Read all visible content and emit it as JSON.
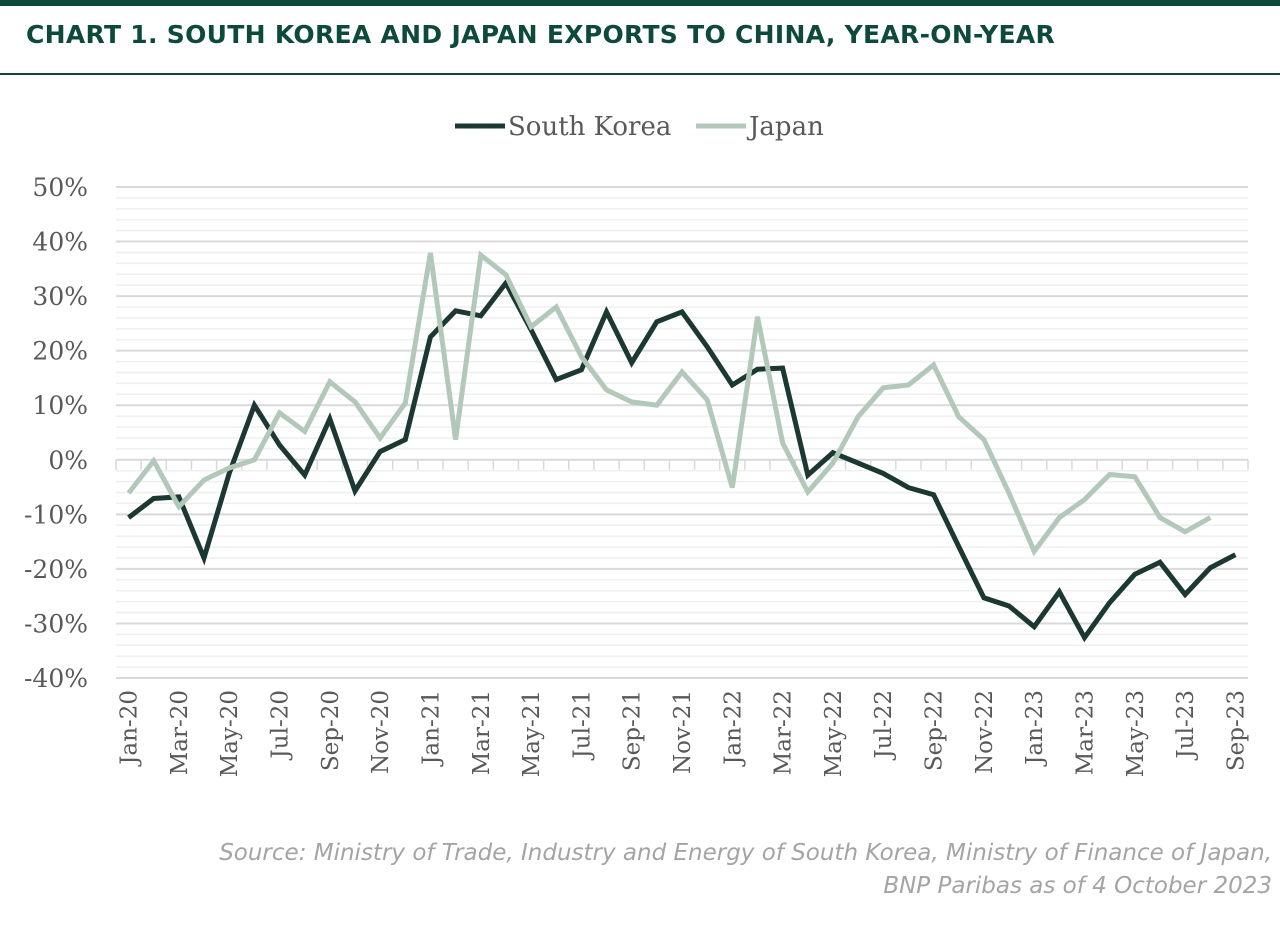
{
  "title": "CHART 1. SOUTH KOREA AND JAPAN EXPORTS TO CHINA, YEAR-ON-YEAR",
  "source_line1": "Source: Ministry of Trade, Industry and Energy of South Korea, Ministry  of Finance of Japan,",
  "source_line2": "BNP Paribas as of 4 October 2023",
  "chart_data": {
    "type": "line",
    "title": "CHART 1. SOUTH KOREA AND JAPAN EXPORTS TO CHINA, YEAR-ON-YEAR",
    "xlabel": "",
    "ylabel": "",
    "ylim": [
      -40,
      50
    ],
    "yticks": [
      50,
      40,
      30,
      20,
      10,
      0,
      -10,
      -20,
      -30,
      -40
    ],
    "ytick_labels": [
      "50%",
      "40%",
      "30%",
      "20%",
      "10%",
      "0%",
      "-10%",
      "-20%",
      "-30%",
      "-40%"
    ],
    "grid": true,
    "legend_position": "top-center",
    "categories": [
      "Jan-20",
      "Feb-20",
      "Mar-20",
      "Apr-20",
      "May-20",
      "Jun-20",
      "Jul-20",
      "Aug-20",
      "Sep-20",
      "Oct-20",
      "Nov-20",
      "Dec-20",
      "Jan-21",
      "Feb-21",
      "Mar-21",
      "Apr-21",
      "May-21",
      "Jun-21",
      "Jul-21",
      "Aug-21",
      "Sep-21",
      "Oct-21",
      "Nov-21",
      "Dec-21",
      "Jan-22",
      "Feb-22",
      "Mar-22",
      "Apr-22",
      "May-22",
      "Jun-22",
      "Jul-22",
      "Aug-22",
      "Sep-22",
      "Oct-22",
      "Nov-22",
      "Dec-22",
      "Jan-23",
      "Feb-23",
      "Mar-23",
      "Apr-23",
      "May-23",
      "Jun-23",
      "Jul-23",
      "Aug-23",
      "Sep-23"
    ],
    "x_tick_labels": [
      "Jan-20",
      "Mar-20",
      "May-20",
      "Jul-20",
      "Sep-20",
      "Nov-20",
      "Jan-21",
      "Mar-21",
      "May-21",
      "Jul-21",
      "Sep-21",
      "Nov-21",
      "Jan-22",
      "Mar-22",
      "May-22",
      "Jul-22",
      "Sep-22",
      "Nov-22",
      "Jan-23",
      "Mar-23",
      "May-23",
      "Jul-23",
      "Sep-23"
    ],
    "series": [
      {
        "name": "South Korea",
        "color": "#1c3832",
        "values": [
          -10.6,
          -7.1,
          -6.8,
          -18,
          -2.5,
          10,
          2.7,
          -2.8,
          7.5,
          -5.7,
          1.5,
          3.7,
          22.5,
          27.3,
          26.4,
          32.4,
          23.8,
          14.7,
          16.5,
          27.1,
          17.8,
          25.3,
          27.1,
          20.7,
          13.7,
          16.6,
          16.8,
          -2.8,
          1.3,
          -0.6,
          -2.5,
          -5.1,
          -6.4,
          -15.9,
          -25.3,
          -26.8,
          -30.6,
          -24.2,
          -32.6,
          -26.2,
          -21,
          -18.8,
          -24.7,
          -19.8,
          -17.4
        ]
      },
      {
        "name": "Japan",
        "color": "#b2c9b9",
        "values": [
          -6.1,
          -0.2,
          -8.6,
          -3.7,
          -1.5,
          0,
          8.6,
          5.2,
          14.3,
          10.6,
          4,
          10.4,
          37.9,
          3.7,
          37.5,
          33.9,
          24.4,
          28,
          18.9,
          12.8,
          10.6,
          10,
          16.1,
          11,
          -5.1,
          26.2,
          3.1,
          -5.9,
          -0.6,
          7.9,
          13.2,
          13.7,
          17.4,
          7.9,
          3.7,
          -6.1,
          -16.8,
          -10.6,
          -7.3,
          -2.7,
          -3.1,
          -10.6,
          -13.2,
          -10.6,
          null
        ]
      }
    ]
  }
}
